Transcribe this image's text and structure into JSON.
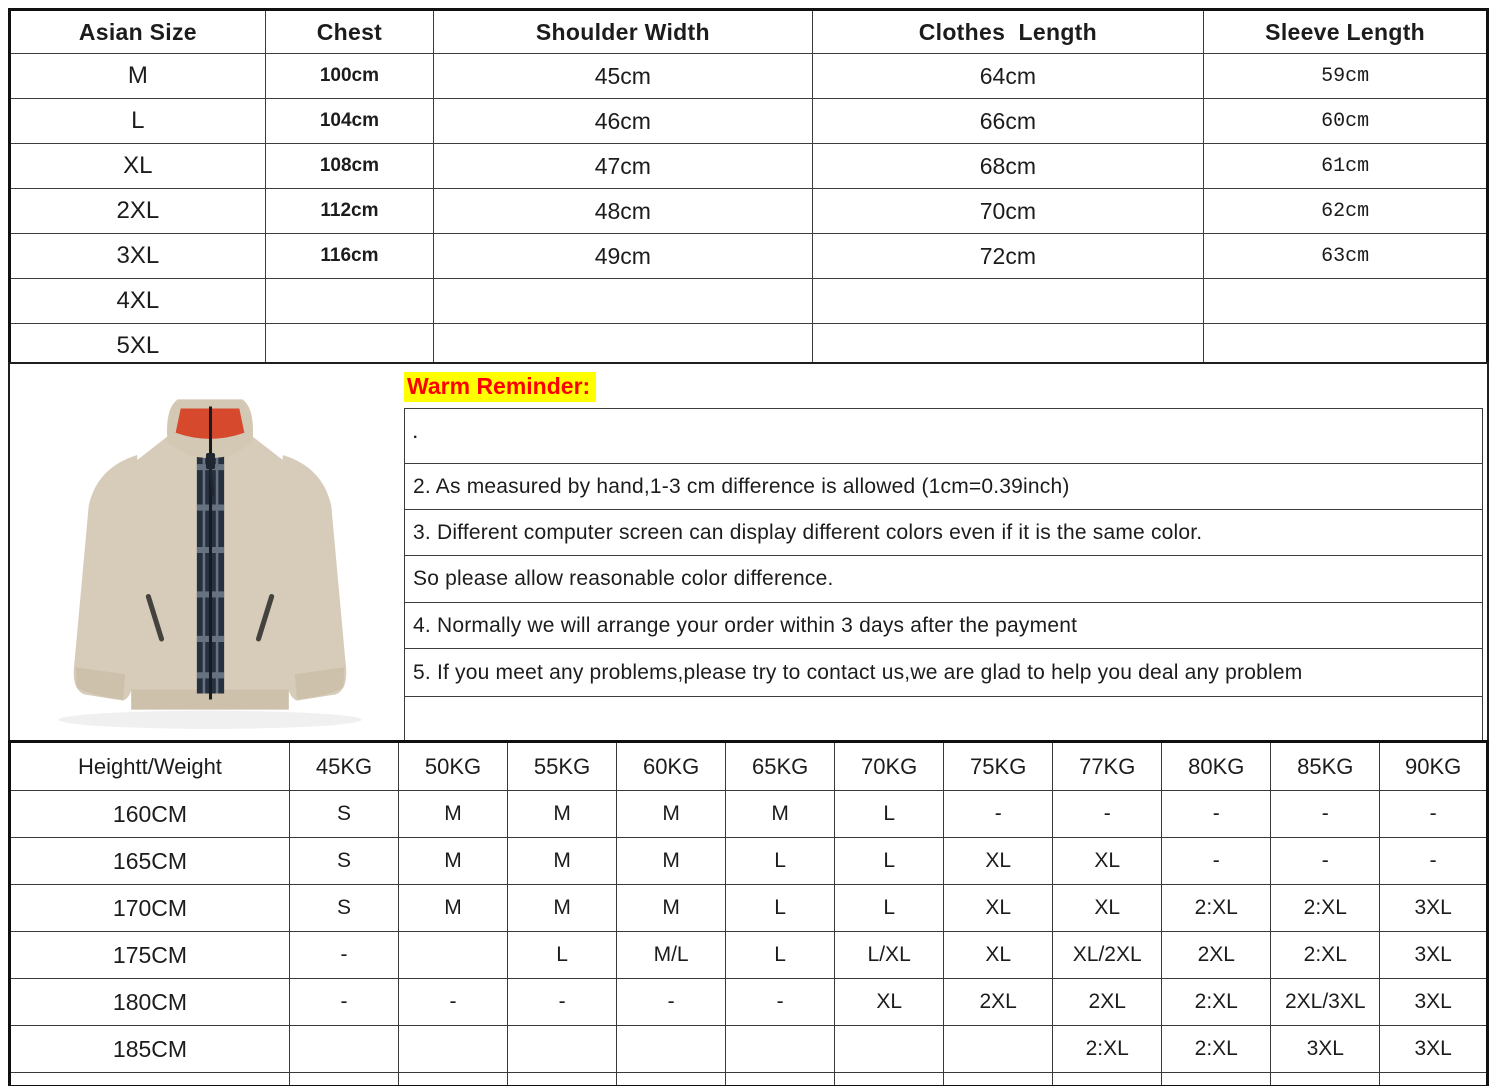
{
  "size_table": {
    "columns": [
      "Asian Size",
      "Chest",
      "Shoulder Width",
      "Clothes  Length",
      "Sleeve Length"
    ],
    "rows": [
      {
        "size": "M",
        "chest": "100cm",
        "shoulder": "45cm",
        "clothes": "64cm",
        "sleeve": "59cm"
      },
      {
        "size": "L",
        "chest": "104cm",
        "shoulder": "46cm",
        "clothes": "66cm",
        "sleeve": "60cm"
      },
      {
        "size": "XL",
        "chest": "108cm",
        "shoulder": "47cm",
        "clothes": "68cm",
        "sleeve": "61cm"
      },
      {
        "size": "2XL",
        "chest": "112cm",
        "shoulder": "48cm",
        "clothes": "70cm",
        "sleeve": "62cm"
      },
      {
        "size": "3XL",
        "chest": "116cm",
        "shoulder": "49cm",
        "clothes": "72cm",
        "sleeve": "63cm"
      },
      {
        "size": "4XL",
        "chest": "",
        "shoulder": "",
        "clothes": "",
        "sleeve": ""
      },
      {
        "size": "5XL",
        "chest": "",
        "shoulder": "",
        "clothes": "",
        "sleeve": ""
      }
    ]
  },
  "reminder": {
    "title": "Warm Reminder:",
    "title_color": "#ff0000",
    "highlight_color": "#ffff00",
    "lines": [
      ".",
      "2. As measured by hand,1-3 cm difference is allowed (1cm=0.39inch)",
      "3. Different computer screen can display different colors even if it is the same color.",
      "So please allow reasonable color difference.",
      "4. Normally we will arrange your order within 3 days after the payment",
      "5. If you meet any problems,please try to contact us,we are glad to help you deal any problem",
      ""
    ]
  },
  "fit_table": {
    "header": [
      "Heightt/Weight",
      "45KG",
      "50KG",
      "55KG",
      "60KG",
      "65KG",
      "70KG",
      "75KG",
      "77KG",
      "80KG",
      "85KG",
      "90KG"
    ],
    "rows": [
      {
        "label": "160CM",
        "cells": [
          "S",
          "M",
          "M",
          "M",
          "M",
          "L",
          "-",
          "-",
          "-",
          "-",
          "-"
        ]
      },
      {
        "label": "165CM",
        "cells": [
          "S",
          "M",
          "M",
          "M",
          "L",
          "L",
          "XL",
          "XL",
          "-",
          "-",
          "-"
        ]
      },
      {
        "label": "170CM",
        "cells": [
          "S",
          "M",
          "M",
          "M",
          "L",
          "L",
          "XL",
          "XL",
          "2:XL",
          "2:XL",
          "3XL"
        ]
      },
      {
        "label": "175CM",
        "cells": [
          "-",
          "",
          "L",
          "M/L",
          "L",
          "L/XL",
          "XL",
          "XL/2XL",
          "2XL",
          "2:XL",
          "3XL"
        ]
      },
      {
        "label": "180CM",
        "cells": [
          "-",
          "-",
          "-",
          "-",
          "-",
          "XL",
          "2XL",
          "2XL",
          "2:XL",
          "2XL/3XL",
          "3XL"
        ]
      },
      {
        "label": "185CM",
        "cells": [
          "",
          "",
          "",
          "",
          "",
          "",
          "",
          "2:XL",
          "2:XL",
          "3XL",
          "3XL"
        ]
      }
    ]
  },
  "product_image": {
    "description": "beige zip-up knit cardigan with stand collar, red inner collar and dark plaid placket",
    "body_color": "#d7ccba",
    "trim_color": "#cdc1ab",
    "collar_inner_color": "#d7492d",
    "placket_color": "#27303e",
    "zipper_color": "#161b24"
  }
}
